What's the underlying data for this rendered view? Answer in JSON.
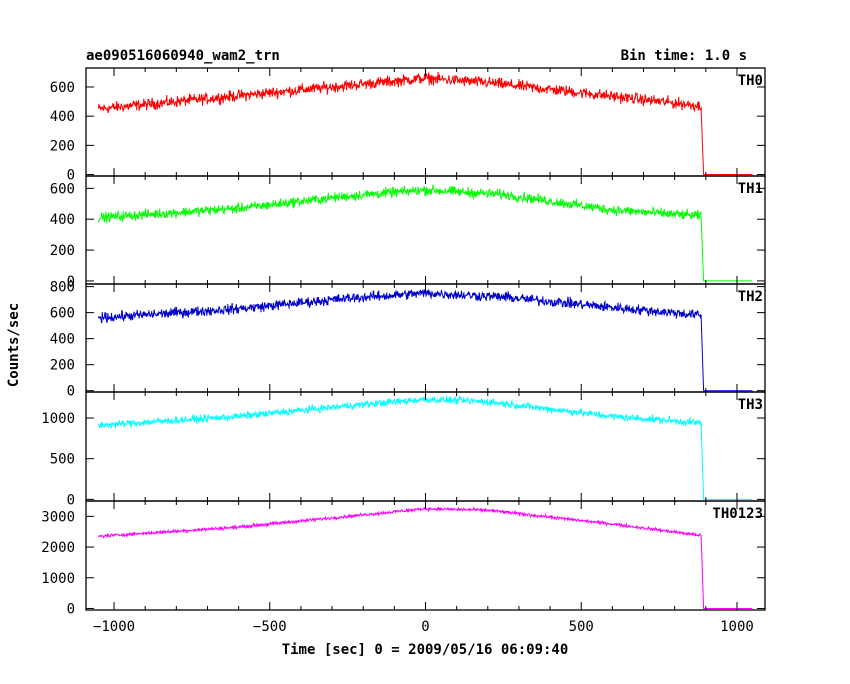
{
  "header": {
    "title": "ae090516060940_wam2_trn",
    "bin_time": "Bin time: 1.0 s"
  },
  "chart_data": {
    "type": "line",
    "xlabel": "Time [sec] 0 = 2009/05/16 06:09:40",
    "ylabel": "Counts/sec",
    "xlim": [
      -1090,
      1090
    ],
    "x_ticks": [
      -1000,
      -500,
      0,
      500,
      1000
    ],
    "x_tick_labels": [
      "−1000",
      "−500",
      "0",
      "500",
      "1000"
    ],
    "grid": false,
    "time_start": -1050,
    "time_drop": 885,
    "time_end": 1050,
    "panels": [
      {
        "name": "TH0",
        "color": "#ff0000",
        "ylim": [
          -10,
          730
        ],
        "yticks": [
          0,
          200,
          400,
          600
        ],
        "profile": [
          [
            -1050,
            450
          ],
          [
            -700,
            520
          ],
          [
            -300,
            600
          ],
          [
            0,
            660
          ],
          [
            200,
            630
          ],
          [
            500,
            560
          ],
          [
            885,
            470
          ]
        ],
        "noise": 60
      },
      {
        "name": "TH1",
        "color": "#00ff00",
        "ylim": [
          -20,
          680
        ],
        "yticks": [
          0,
          200,
          400,
          600
        ],
        "profile": [
          [
            -1050,
            410
          ],
          [
            -600,
            470
          ],
          [
            -250,
            550
          ],
          [
            0,
            590
          ],
          [
            250,
            560
          ],
          [
            600,
            460
          ],
          [
            885,
            420
          ]
        ],
        "noise": 50
      },
      {
        "name": "TH2",
        "color": "#0000cc",
        "ylim": [
          -10,
          820
        ],
        "yticks": [
          0,
          200,
          400,
          600,
          800
        ],
        "profile": [
          [
            -1050,
            560
          ],
          [
            -600,
            630
          ],
          [
            -250,
            710
          ],
          [
            0,
            750
          ],
          [
            250,
            720
          ],
          [
            600,
            640
          ],
          [
            885,
            580
          ]
        ],
        "noise": 60
      },
      {
        "name": "TH3",
        "color": "#00ffff",
        "ylim": [
          -20,
          1320
        ],
        "yticks": [
          0,
          500,
          1000
        ],
        "profile": [
          [
            -1050,
            910
          ],
          [
            -600,
            1020
          ],
          [
            -250,
            1150
          ],
          [
            0,
            1230
          ],
          [
            200,
            1200
          ],
          [
            600,
            1020
          ],
          [
            885,
            940
          ]
        ],
        "noise": 70
      },
      {
        "name": "TH0123",
        "color": "#ff00ff",
        "ylim": [
          -50,
          3500
        ],
        "yticks": [
          0,
          1000,
          2000,
          3000
        ],
        "profile": [
          [
            -1050,
            2350
          ],
          [
            -600,
            2650
          ],
          [
            -250,
            3000
          ],
          [
            0,
            3250
          ],
          [
            200,
            3200
          ],
          [
            600,
            2750
          ],
          [
            885,
            2380
          ]
        ],
        "noise": 80
      }
    ]
  }
}
